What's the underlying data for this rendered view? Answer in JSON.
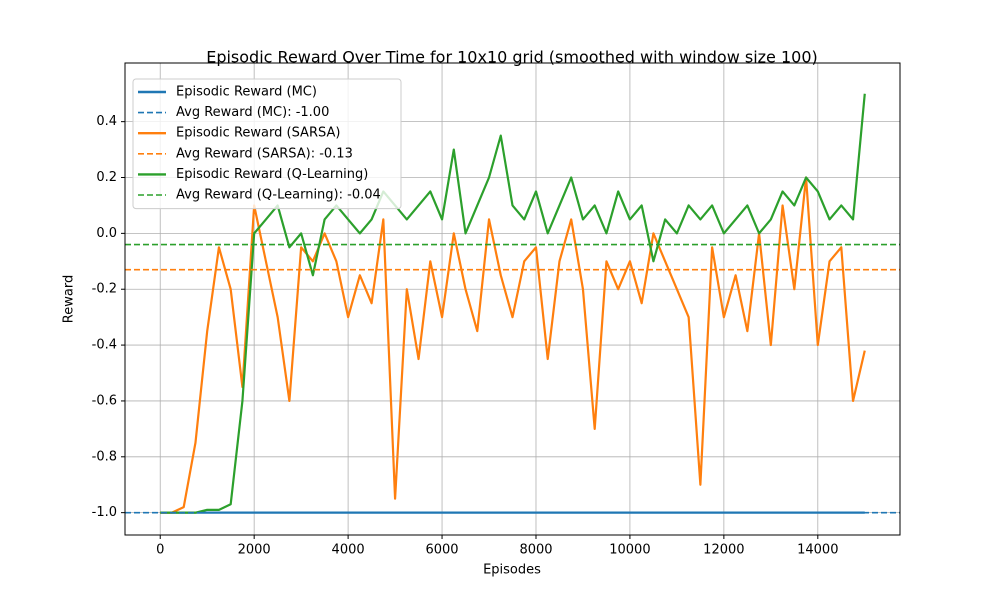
{
  "chart_data": {
    "type": "line",
    "title": "Episodic Reward Over Time for 10x10 grid (smoothed with window size 100)",
    "x_label": "Episodes",
    "y_label": "Reward",
    "grid": true,
    "legend": "upper left",
    "xlim": [
      -750,
      15750
    ],
    "ylim": [
      -1.08,
      0.61
    ],
    "xticks": [
      0,
      2000,
      4000,
      6000,
      8000,
      10000,
      12000,
      14000
    ],
    "yticks": [
      {
        "value": -1.0,
        "label": "-1.0"
      },
      -0.8,
      -0.6,
      -0.4,
      -0.2,
      {
        "value": 0.0,
        "label": "0.0"
      },
      0.2,
      0.4
    ],
    "x": [
      0,
      250,
      500,
      750,
      1000,
      1250,
      1500,
      1750,
      2000,
      2250,
      2500,
      2750,
      3000,
      3250,
      3500,
      3750,
      4000,
      4250,
      4500,
      4750,
      5000,
      5250,
      5500,
      5750,
      6000,
      6250,
      6500,
      6750,
      7000,
      7250,
      7500,
      7750,
      8000,
      8250,
      8500,
      8750,
      9000,
      9250,
      9500,
      9750,
      10000,
      10250,
      10500,
      10750,
      11000,
      11250,
      11500,
      11750,
      12000,
      12250,
      12500,
      12750,
      13000,
      13250,
      13500,
      13750,
      14000,
      14250,
      14500,
      14750,
      15000
    ],
    "series": [
      {
        "name": "Episodic Reward (MC)",
        "color": "#1f77b4",
        "values": [
          -1,
          -1,
          -1,
          -1,
          -1,
          -1,
          -1,
          -1,
          -1,
          -1,
          -1,
          -1,
          -1,
          -1,
          -1,
          -1,
          -1,
          -1,
          -1,
          -1,
          -1,
          -1,
          -1,
          -1,
          -1,
          -1,
          -1,
          -1,
          -1,
          -1,
          -1,
          -1,
          -1,
          -1,
          -1,
          -1,
          -1,
          -1,
          -1,
          -1,
          -1,
          -1,
          -1,
          -1,
          -1,
          -1,
          -1,
          -1,
          -1,
          -1,
          -1,
          -1,
          -1,
          -1,
          -1,
          -1,
          -1,
          -1,
          -1,
          -1,
          -1
        ]
      },
      {
        "name": "Episodic Reward (SARSA)",
        "color": "#ff7f0e",
        "values": [
          -1.0,
          -1.0,
          -0.98,
          -0.75,
          -0.35,
          -0.05,
          -0.2,
          -0.55,
          0.1,
          -0.1,
          -0.3,
          -0.6,
          -0.05,
          -0.1,
          0.0,
          -0.1,
          -0.3,
          -0.15,
          -0.25,
          0.05,
          -0.95,
          -0.2,
          -0.45,
          -0.1,
          -0.3,
          0.0,
          -0.2,
          -0.35,
          0.05,
          -0.15,
          -0.3,
          -0.1,
          -0.05,
          -0.45,
          -0.1,
          0.05,
          -0.2,
          -0.7,
          -0.1,
          -0.2,
          -0.1,
          -0.25,
          0.0,
          -0.1,
          -0.2,
          -0.3,
          -0.9,
          -0.05,
          -0.3,
          -0.15,
          -0.35,
          0.0,
          -0.4,
          0.1,
          -0.2,
          0.2,
          -0.4,
          -0.1,
          -0.05,
          -0.6,
          -0.42
        ]
      },
      {
        "name": "Episodic Reward (Q-Learning)",
        "color": "#2ca02c",
        "values": [
          -1.0,
          -1.0,
          -1.0,
          -1.0,
          -0.99,
          -0.99,
          -0.97,
          -0.6,
          0.0,
          0.05,
          0.1,
          -0.05,
          0.0,
          -0.15,
          0.05,
          0.1,
          0.05,
          0.0,
          0.05,
          0.15,
          0.1,
          0.05,
          0.1,
          0.15,
          0.05,
          0.3,
          0.0,
          0.1,
          0.2,
          0.35,
          0.1,
          0.05,
          0.15,
          0.0,
          0.1,
          0.2,
          0.05,
          0.1,
          0.0,
          0.15,
          0.05,
          0.1,
          -0.1,
          0.05,
          0.0,
          0.1,
          0.05,
          0.1,
          0.0,
          0.05,
          0.1,
          0.0,
          0.05,
          0.15,
          0.1,
          0.2,
          0.15,
          0.05,
          0.1,
          0.05,
          0.5
        ]
      }
    ],
    "hlines": [
      {
        "name": "Avg Reward (MC): -1.00",
        "color": "#1f77b4",
        "value": -1.0
      },
      {
        "name": "Avg Reward (SARSA): -0.13",
        "color": "#ff7f0e",
        "value": -0.13
      },
      {
        "name": "Avg Reward (Q-Learning): -0.04",
        "color": "#2ca02c",
        "value": -0.04
      }
    ]
  }
}
